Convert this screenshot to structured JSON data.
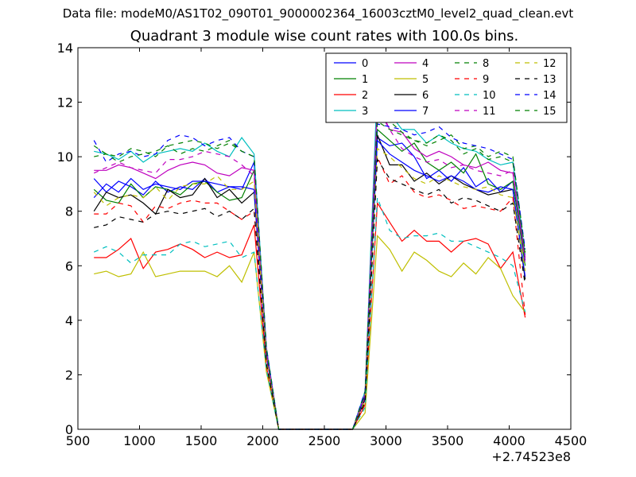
{
  "figure": {
    "suptitle": "Data file: modeM0/AS1T02_090T01_9000002364_16003cztM0_level2_quad_clean.evt"
  },
  "chart_data": {
    "type": "line",
    "title": "Quadrant 3 module wise count rates with 100.0s bins.",
    "xlabel": "",
    "ylabel": "",
    "x_offset_label": "+2.74523e8",
    "xlim": [
      500,
      4500
    ],
    "ylim": [
      0,
      14
    ],
    "xticks": [
      500,
      1000,
      1500,
      2000,
      2500,
      3000,
      3500,
      4000,
      4500
    ],
    "yticks": [
      0,
      2,
      4,
      6,
      8,
      10,
      12,
      14
    ],
    "grid": false,
    "legend_position": "top-right",
    "legend_columns": 4,
    "x": [
      630,
      730,
      830,
      930,
      1030,
      1130,
      1230,
      1330,
      1430,
      1530,
      1630,
      1730,
      1830,
      1930,
      2030,
      2130,
      2230,
      2330,
      2430,
      2530,
      2630,
      2730,
      2830,
      2930,
      3030,
      3130,
      3230,
      3330,
      3430,
      3530,
      3630,
      3730,
      3830,
      3930,
      4030,
      4130
    ],
    "series": [
      {
        "name": "0",
        "color": "#0000ff",
        "dash": "solid",
        "values": [
          9.2,
          8.7,
          9.1,
          8.9,
          8.6,
          9.1,
          8.7,
          8.9,
          8.8,
          9.2,
          8.7,
          8.9,
          8.8,
          9.8,
          2.8,
          0,
          0,
          0,
          0,
          0,
          0,
          0,
          1.2,
          10.7,
          10.4,
          10.5,
          10.0,
          9.2,
          9.5,
          9.1,
          9.6,
          8.9,
          9.2,
          8.7,
          9.1,
          6.2
        ]
      },
      {
        "name": "1",
        "color": "#008000",
        "dash": "solid",
        "values": [
          8.8,
          8.4,
          8.3,
          9.0,
          8.5,
          8.9,
          8.8,
          8.6,
          9.0,
          9.1,
          8.7,
          8.4,
          8.5,
          9.5,
          2.9,
          0,
          0,
          0,
          0,
          0,
          0,
          0,
          1.3,
          11.0,
          10.6,
          10.2,
          10.5,
          9.8,
          9.5,
          9.8,
          9.4,
          10.1,
          9.0,
          8.8,
          9.1,
          6.0
        ]
      },
      {
        "name": "2",
        "color": "#ff0000",
        "dash": "solid",
        "values": [
          6.3,
          6.3,
          6.6,
          7.0,
          5.9,
          6.5,
          6.6,
          6.8,
          6.6,
          6.3,
          6.5,
          6.3,
          6.4,
          7.5,
          2.3,
          0,
          0,
          0,
          0,
          0,
          0,
          0,
          0.9,
          8.3,
          7.6,
          6.9,
          7.3,
          6.9,
          6.9,
          6.5,
          6.9,
          7.0,
          6.8,
          5.9,
          6.5,
          4.1
        ]
      },
      {
        "name": "3",
        "color": "#00bfbf",
        "dash": "solid",
        "values": [
          10.2,
          10.1,
          9.9,
          10.2,
          9.8,
          10.1,
          10.2,
          10.3,
          10.2,
          10.5,
          10.2,
          10.0,
          10.7,
          10.1,
          3.0,
          0,
          0,
          0,
          0,
          0,
          0,
          0,
          1.4,
          12.7,
          11.6,
          11.0,
          11.0,
          10.5,
          10.8,
          10.5,
          10.3,
          10.2,
          9.9,
          9.7,
          9.8,
          6.4
        ]
      },
      {
        "name": "4",
        "color": "#bf00bf",
        "dash": "solid",
        "values": [
          9.5,
          9.5,
          9.7,
          9.6,
          9.4,
          9.2,
          9.5,
          9.7,
          9.8,
          9.7,
          9.4,
          9.3,
          9.6,
          9.5,
          2.9,
          0,
          0,
          0,
          0,
          0,
          0,
          0,
          1.3,
          12.0,
          11.0,
          10.9,
          10.3,
          10.0,
          10.2,
          10.0,
          9.7,
          9.6,
          9.8,
          9.5,
          9.4,
          6.3
        ]
      },
      {
        "name": "5",
        "color": "#bfbf00",
        "dash": "solid",
        "values": [
          5.7,
          5.8,
          5.6,
          5.7,
          6.5,
          5.6,
          5.7,
          5.8,
          5.8,
          5.8,
          5.6,
          6.0,
          5.4,
          6.5,
          2.1,
          0,
          0,
          0,
          0,
          0,
          0,
          0,
          0.6,
          7.1,
          6.6,
          5.8,
          6.5,
          6.2,
          5.8,
          5.6,
          6.1,
          5.7,
          6.3,
          5.9,
          4.9,
          4.3
        ]
      },
      {
        "name": "6",
        "color": "#000000",
        "dash": "solid",
        "values": [
          8.0,
          8.7,
          8.5,
          8.6,
          8.3,
          7.9,
          8.8,
          8.5,
          8.6,
          9.2,
          8.5,
          8.8,
          8.3,
          8.7,
          2.7,
          0,
          0,
          0,
          0,
          0,
          0,
          0,
          1.1,
          10.8,
          9.7,
          9.7,
          9.1,
          9.4,
          9.0,
          9.3,
          9.0,
          8.8,
          8.6,
          8.7,
          8.8,
          5.5
        ]
      },
      {
        "name": "7",
        "color": "#0000ff",
        "dash": "solid",
        "values": [
          8.5,
          9.0,
          8.7,
          9.2,
          8.8,
          9.0,
          8.9,
          8.8,
          9.1,
          9.1,
          9.0,
          8.9,
          8.9,
          8.8,
          2.7,
          0,
          0,
          0,
          0,
          0,
          0,
          0,
          1.2,
          10.6,
          10.1,
          9.8,
          9.5,
          9.3,
          9.1,
          9.3,
          9.1,
          8.8,
          8.7,
          8.9,
          8.8,
          5.6
        ]
      },
      {
        "name": "8",
        "color": "#008000",
        "dash": "dashed",
        "values": [
          10.4,
          10.1,
          10.0,
          10.3,
          10.2,
          10.0,
          10.4,
          10.5,
          10.6,
          10.5,
          10.3,
          10.5,
          10.2,
          10.0,
          3.0,
          0,
          0,
          0,
          0,
          0,
          0,
          0,
          1.4,
          11.3,
          11.0,
          10.8,
          10.6,
          10.4,
          10.6,
          10.8,
          10.3,
          10.4,
          10.0,
          10.2,
          10.0,
          6.5
        ]
      },
      {
        "name": "9",
        "color": "#ff0000",
        "dash": "dashed",
        "values": [
          7.9,
          7.9,
          8.3,
          8.2,
          7.6,
          8.2,
          8.1,
          8.3,
          8.4,
          8.3,
          8.3,
          8.0,
          7.7,
          8.0,
          2.5,
          0,
          0,
          0,
          0,
          0,
          0,
          0,
          1.0,
          10.0,
          9.0,
          9.3,
          8.7,
          8.5,
          8.6,
          8.4,
          8.1,
          8.2,
          8.1,
          8.0,
          8.5,
          4.2
        ]
      },
      {
        "name": "10",
        "color": "#00bfbf",
        "dash": "dashed",
        "values": [
          6.5,
          6.7,
          6.5,
          6.1,
          6.4,
          6.4,
          6.4,
          6.8,
          6.9,
          6.7,
          6.8,
          6.9,
          6.3,
          6.5,
          2.2,
          0,
          0,
          0,
          0,
          0,
          0,
          0,
          0.8,
          8.5,
          7.3,
          7.0,
          7.1,
          7.1,
          7.2,
          6.9,
          6.9,
          6.7,
          6.5,
          6.3,
          6.0,
          4.3
        ]
      },
      {
        "name": "11",
        "color": "#bf00bf",
        "dash": "dashed",
        "values": [
          9.4,
          9.6,
          9.8,
          9.6,
          9.5,
          9.4,
          9.9,
          9.9,
          10.0,
          10.2,
          10.1,
          10.0,
          9.7,
          9.3,
          2.8,
          0,
          0,
          0,
          0,
          0,
          0,
          0,
          1.2,
          11.8,
          11.0,
          10.3,
          10.0,
          9.8,
          9.9,
          9.6,
          9.7,
          9.5,
          9.4,
          9.3,
          9.5,
          6.1
        ]
      },
      {
        "name": "12",
        "color": "#bfbf00",
        "dash": "dashed",
        "values": [
          8.7,
          8.2,
          8.5,
          8.6,
          8.5,
          8.9,
          8.4,
          8.9,
          9.0,
          9.0,
          9.3,
          8.8,
          8.8,
          9.1,
          2.6,
          0,
          0,
          0,
          0,
          0,
          0,
          0,
          1.1,
          10.3,
          10.0,
          9.6,
          9.2,
          9.0,
          9.3,
          9.1,
          8.9,
          8.8,
          8.9,
          8.6,
          8.5,
          5.8
        ]
      },
      {
        "name": "13",
        "color": "#000000",
        "dash": "dashed",
        "values": [
          7.4,
          7.5,
          7.8,
          7.7,
          7.6,
          7.9,
          8.0,
          7.9,
          8.0,
          8.1,
          7.8,
          8.0,
          7.7,
          8.1,
          2.4,
          0,
          0,
          0,
          0,
          0,
          0,
          0,
          1.0,
          9.9,
          9.2,
          9.0,
          8.8,
          8.6,
          8.8,
          8.3,
          8.5,
          8.4,
          8.2,
          8.0,
          8.3,
          5.3
        ]
      },
      {
        "name": "14",
        "color": "#0000ff",
        "dash": "dashed",
        "values": [
          10.6,
          9.8,
          10.1,
          10.2,
          10.0,
          10.1,
          10.6,
          10.8,
          10.7,
          10.4,
          10.6,
          10.7,
          10.2,
          10.0,
          3.0,
          0,
          0,
          0,
          0,
          0,
          0,
          0,
          1.4,
          11.2,
          11.1,
          11.0,
          10.8,
          10.9,
          11.1,
          10.7,
          10.5,
          10.4,
          10.3,
          10.1,
          9.9,
          6.6
        ]
      },
      {
        "name": "15",
        "color": "#008000",
        "dash": "dashed",
        "values": [
          10.0,
          10.1,
          9.8,
          10.0,
          10.1,
          10.2,
          10.4,
          10.1,
          10.3,
          10.2,
          10.4,
          10.6,
          10.2,
          10.0,
          2.9,
          0,
          0,
          0,
          0,
          0,
          0,
          0,
          1.3,
          11.5,
          11.3,
          10.9,
          10.6,
          10.5,
          10.8,
          10.6,
          10.1,
          10.3,
          9.9,
          10.0,
          9.8,
          6.4
        ]
      }
    ]
  }
}
